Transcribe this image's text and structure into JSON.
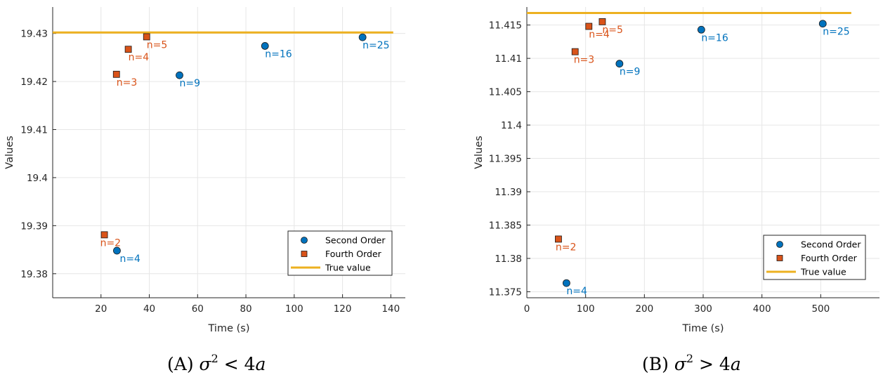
{
  "chart_data": [
    {
      "type": "scatter",
      "caption": {
        "tag": "A",
        "sym": "σ",
        "sup": "2",
        "rel": " < 4a"
      },
      "xlabel": "Time (s)",
      "ylabel": "Values",
      "xlim": [
        0,
        146
      ],
      "ylim": [
        19.375,
        19.4355
      ],
      "xticks": [
        20,
        40,
        60,
        80,
        100,
        120,
        140
      ],
      "yticks": [
        19.38,
        19.39,
        19.4,
        19.41,
        19.42,
        19.43
      ],
      "grid": true,
      "legend_position": "bottom-right",
      "true_value": {
        "name": "True value",
        "y": 19.4302,
        "x_range": [
          0,
          141
        ]
      },
      "series": [
        {
          "name": "Second Order",
          "marker": "circle",
          "color": "#0072BD",
          "x": [
            26.6,
            52.5,
            87.9,
            128.3
          ],
          "y": [
            19.3848,
            19.4213,
            19.4274,
            19.4292
          ],
          "labels": [
            "n=4",
            "n=9",
            "n=16",
            "n=25"
          ]
        },
        {
          "name": "Fourth Order",
          "marker": "square",
          "color": "#D95319",
          "x": [
            21.4,
            26.4,
            31.3,
            38.9
          ],
          "y": [
            19.3881,
            19.4215,
            19.4267,
            19.4293
          ],
          "labels": [
            "n=2",
            "n=3",
            "n=4",
            "n=5"
          ]
        }
      ]
    },
    {
      "type": "scatter",
      "caption": {
        "tag": "B",
        "sym": "σ",
        "sup": "2",
        "rel": " > 4a"
      },
      "xlabel": "Time (s)",
      "ylabel": "Values",
      "xlim": [
        0,
        600
      ],
      "ylim": [
        11.3741,
        11.4177
      ],
      "xticks": [
        0,
        100,
        200,
        300,
        400,
        500
      ],
      "yticks": [
        11.375,
        11.38,
        11.385,
        11.39,
        11.395,
        11.4,
        11.405,
        11.41,
        11.415
      ],
      "grid": true,
      "legend_position": "bottom-right",
      "true_value": {
        "name": "True value",
        "y": 11.4168,
        "x_range": [
          0,
          552
        ]
      },
      "series": [
        {
          "name": "Second Order",
          "marker": "circle",
          "color": "#0072BD",
          "x": [
            67.4,
            157.6,
            296.8,
            503.5
          ],
          "y": [
            11.3763,
            11.4092,
            11.4143,
            11.4152
          ],
          "labels": [
            "n=4",
            "n=9",
            "n=16",
            "n=25"
          ]
        },
        {
          "name": "Fourth Order",
          "marker": "square",
          "color": "#D95319",
          "x": [
            53.7,
            82.1,
            105.5,
            128.4
          ],
          "y": [
            11.3829,
            11.411,
            11.4148,
            11.4155
          ],
          "labels": [
            "n=2",
            "n=3",
            "n=4",
            "n=5"
          ]
        }
      ]
    }
  ],
  "colors": {
    "second": "#0072BD",
    "fourth": "#D95319",
    "truth": "#EDB120",
    "grid": "#e6e6e6",
    "axis": "#262626"
  }
}
